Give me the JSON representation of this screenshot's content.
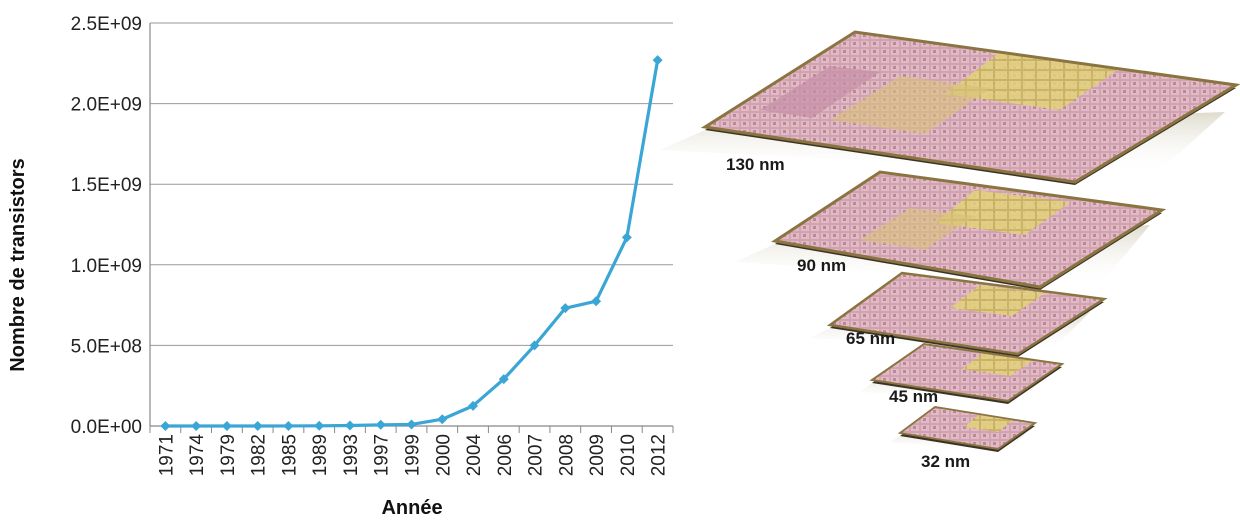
{
  "chart_data": {
    "type": "line",
    "title": "",
    "xlabel": "Année",
    "ylabel": "Nombre de transistors",
    "categories": [
      "1971",
      "1974",
      "1979",
      "1982",
      "1985",
      "1989",
      "1993",
      "1997",
      "1999",
      "2000",
      "2004",
      "2006",
      "2007",
      "2008",
      "2009",
      "2010",
      "2012"
    ],
    "series": [
      {
        "values": [
          2300,
          4500,
          29000,
          134000,
          275000,
          1200000,
          3100000,
          7500000,
          9500000,
          42000000,
          125000000,
          291000000,
          500000000,
          731000000,
          774000000,
          1170000000,
          2270000000
        ],
        "color": "#3aa6d6",
        "marker": "diamond"
      }
    ],
    "ylim": [
      0,
      2500000000
    ],
    "yticks": [
      "0.0E+00",
      "5.0E+08",
      "1.0E+09",
      "1.5E+09",
      "2.0E+09",
      "2.5E+09"
    ],
    "grid": true,
    "legend": "none"
  },
  "process_nodes": [
    {
      "label": "130 nm"
    },
    {
      "label": "90 nm"
    },
    {
      "label": "65 nm"
    },
    {
      "label": "45 nm"
    },
    {
      "label": "32 nm"
    }
  ]
}
